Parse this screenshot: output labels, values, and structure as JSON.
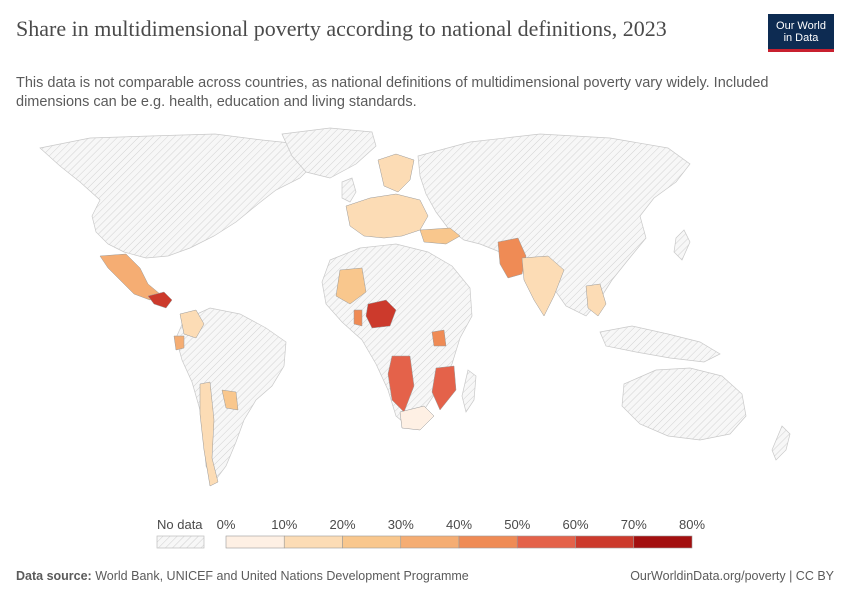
{
  "header": {
    "title": "Share in multidimensional poverty according to national definitions, 2023",
    "subtitle": "This data is not comparable across countries, as national definitions of multidimensional poverty vary widely. Included dimensions can be e.g. health, education and living standards.",
    "logo_line1": "Our World",
    "logo_line2": "in Data"
  },
  "legend": {
    "no_data_label": "No data",
    "bins": [
      {
        "from": "0%",
        "to": "10%",
        "color": "#fef0e4"
      },
      {
        "from": "10%",
        "to": "20%",
        "color": "#fcdcb5"
      },
      {
        "from": "20%",
        "to": "30%",
        "color": "#f9c78d"
      },
      {
        "from": "30%",
        "to": "40%",
        "color": "#f5ad73"
      },
      {
        "from": "40%",
        "to": "50%",
        "color": "#ef8b55"
      },
      {
        "from": "50%",
        "to": "60%",
        "color": "#e4624a"
      },
      {
        "from": "60%",
        "to": "70%",
        "color": "#cc3a2c"
      },
      {
        "from": "70%",
        "to": "80%",
        "color": "#a30f0f"
      }
    ],
    "tick_labels": [
      "0%",
      "10%",
      "20%",
      "30%",
      "40%",
      "50%",
      "60%",
      "70%",
      "80%"
    ]
  },
  "footer": {
    "source_label": "Data source:",
    "source_text": "World Bank, UNICEF and United Nations Development Programme",
    "credit": "OurWorldinData.org/poverty | CC BY"
  },
  "map_data": {
    "colors": {
      "c0": "#fef0e4",
      "c1": "#fcdcb5",
      "c2": "#f9c78d",
      "c3": "#f5ad73",
      "c4": "#ef8b55",
      "c5": "#e4624a",
      "c6": "#cc3a2c",
      "c7": "#a30f0f"
    }
  }
}
